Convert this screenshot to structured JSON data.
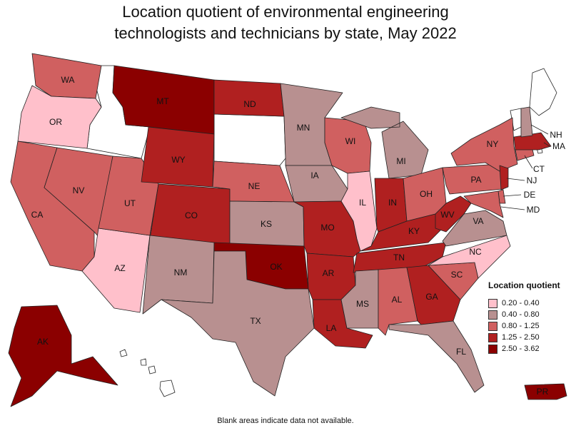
{
  "title_line1": "Location quotient of environmental engineering",
  "title_line2": "technologists and technicians by state, May 2022",
  "legend": {
    "title": "Location quotient",
    "bins": [
      {
        "label": "0.20 - 0.40",
        "color": "#ffc0cb"
      },
      {
        "label": "0.40 - 0.80",
        "color": "#b89090"
      },
      {
        "label": "0.80 - 1.25",
        "color": "#d06060"
      },
      {
        "label": "1.25 - 2.50",
        "color": "#b02020"
      },
      {
        "label": "2.50 - 3.62",
        "color": "#8b0000"
      }
    ]
  },
  "states": {
    "WA": 2,
    "OR": 0,
    "CA": 2,
    "NV": 2,
    "AZ": 0,
    "UT": 2,
    "MT": 4,
    "WY": 3,
    "CO": 3,
    "NM": 1,
    "ND": 3,
    "NE": 2,
    "KS": 1,
    "OK": 4,
    "TX": 1,
    "MN": 1,
    "IA": 1,
    "MO": 3,
    "AR": 3,
    "LA": 3,
    "WI": 2,
    "IL": 0,
    "MI": 1,
    "IN": 3,
    "OH": 2,
    "KY": 3,
    "TN": 3,
    "MS": 1,
    "AL": 2,
    "GA": 3,
    "FL": 1,
    "SC": 2,
    "NC": 0,
    "VA": 1,
    "WV": 3,
    "PA": 2,
    "NY": 2,
    "NJ": 3,
    "DE": 2,
    "MD": 2,
    "CT": 2,
    "MA": 3,
    "NH": 1,
    "AK": 4,
    "PR": 4
  },
  "callouts": [
    "NH",
    "MA",
    "CT",
    "NJ",
    "DE",
    "MD"
  ],
  "footnote": "Blank areas indicate data not available."
}
